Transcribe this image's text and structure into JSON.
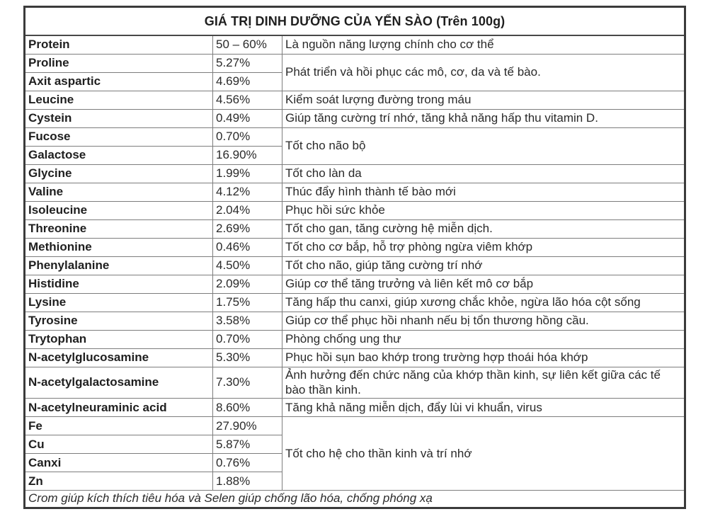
{
  "table": {
    "title": "GIÁ TRỊ DINH DƯỠNG CỦA YẾN SÀO (Trên 100g)",
    "footnote": "Crom giúp kích thích tiêu hóa và Selen giúp chống lão hóa, chống phóng xạ",
    "rows": [
      {
        "nutrient": "Protein",
        "percent": "50 – 60%",
        "benefit": "Là nguồn năng lượng chính cho cơ thể",
        "benefit_rowspan": 1,
        "cont": false
      },
      {
        "nutrient": "Proline",
        "percent": "5.27%",
        "benefit": "Phát triển và hồi phục các mô, cơ, da và tế bào.",
        "benefit_rowspan": 2,
        "cont": false
      },
      {
        "nutrient": "Axit aspartic",
        "percent": "4.69%",
        "benefit": null,
        "cont": true
      },
      {
        "nutrient": "Leucine",
        "percent": "4.56%",
        "benefit": "Kiểm soát lượng đường trong máu",
        "benefit_rowspan": 1,
        "cont": false
      },
      {
        "nutrient": "Cystein",
        "percent": "0.49%",
        "benefit": "Giúp tăng cường trí nhớ, tăng khả năng hấp thu vitamin D.",
        "benefit_rowspan": 1,
        "cont": false
      },
      {
        "nutrient": "Fucose",
        "percent": "0.70%",
        "benefit": "Tốt cho não bộ",
        "benefit_rowspan": 2,
        "cont": false
      },
      {
        "nutrient": "Galactose",
        "percent": "16.90%",
        "benefit": null,
        "cont": true
      },
      {
        "nutrient": "Glycine",
        "percent": "1.99%",
        "benefit": "Tốt cho làn da",
        "benefit_rowspan": 1,
        "cont": false
      },
      {
        "nutrient": "Valine",
        "percent": "4.12%",
        "benefit": "Thúc đẩy hình thành tế bào mới",
        "benefit_rowspan": 1,
        "cont": false
      },
      {
        "nutrient": "Isoleucine",
        "percent": "2.04%",
        "benefit": "Phục hồi sức khỏe",
        "benefit_rowspan": 1,
        "cont": false
      },
      {
        "nutrient": "Threonine",
        "percent": "2.69%",
        "benefit": "Tốt cho gan, tăng cường hệ miễn dịch.",
        "benefit_rowspan": 1,
        "cont": false
      },
      {
        "nutrient": "Methionine",
        "percent": "0.46%",
        "benefit": "Tốt cho cơ bắp, hỗ trợ phòng ngừa viêm khớp",
        "benefit_rowspan": 1,
        "cont": false
      },
      {
        "nutrient": "Phenylalanine",
        "percent": "4.50%",
        "benefit": "Tốt cho não, giúp tăng cường trí nhớ",
        "benefit_rowspan": 1,
        "cont": false
      },
      {
        "nutrient": "Histidine",
        "percent": "2.09%",
        "benefit": "Giúp cơ thể tăng trưởng và liên kết mô cơ bắp",
        "benefit_rowspan": 1,
        "cont": false
      },
      {
        "nutrient": "Lysine",
        "percent": "1.75%",
        "benefit": "Tăng hấp thu canxi, giúp xương chắc khỏe, ngừa lão hóa cột sống",
        "benefit_rowspan": 1,
        "cont": false
      },
      {
        "nutrient": "Tyrosine",
        "percent": "3.58%",
        "benefit": "Giúp cơ thể phục hồi nhanh nếu bị tổn thương hồng cầu.",
        "benefit_rowspan": 1,
        "cont": false
      },
      {
        "nutrient": "Trytophan",
        "percent": "0.70%",
        "benefit": "Phòng chống ung thư",
        "benefit_rowspan": 1,
        "cont": false
      },
      {
        "nutrient": "N-acetylglucosamine",
        "percent": "5.30%",
        "benefit": "Phục hồi sụn bao khớp trong trường hợp thoái hóa khớp",
        "benefit_rowspan": 1,
        "cont": false
      },
      {
        "nutrient": "N-acetylgalactosamine",
        "percent": "7.30%",
        "benefit": "Ảnh hưởng đến chức năng của khớp thần kinh, sự liên kết giữa các tế bào thần kinh.",
        "benefit_rowspan": 1,
        "cont": false
      },
      {
        "nutrient": "N-acetylneuraminic acid",
        "percent": "8.60%",
        "benefit": "Tăng khả năng miễn dịch, đẩy lùi vi khuẩn, virus",
        "benefit_rowspan": 1,
        "cont": false
      },
      {
        "nutrient": "Fe",
        "percent": "27.90%",
        "benefit": "Tốt cho hệ cho thần kinh và trí nhớ",
        "benefit_rowspan": 4,
        "cont": false
      },
      {
        "nutrient": "Cu",
        "percent": "5.87%",
        "benefit": null,
        "cont": true
      },
      {
        "nutrient": "Canxi",
        "percent": "0.76%",
        "benefit": null,
        "cont": true
      },
      {
        "nutrient": "Zn",
        "percent": "1.88%",
        "benefit": null,
        "cont": true
      }
    ],
    "colors": {
      "outer_border": "#3b3b3b",
      "inner_border": "#7d7d7d",
      "light_inner_border": "#bcbcbc",
      "text": "#222222",
      "background": "#ffffff"
    }
  }
}
